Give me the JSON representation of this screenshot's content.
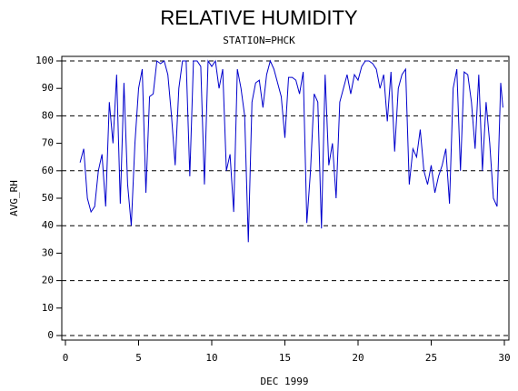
{
  "chart_data": {
    "type": "line",
    "title": "RELATIVE HUMIDITY",
    "subtitle": "STATION=PHCK",
    "x_label": "DEC 1999",
    "y_label": "AVG_RH",
    "xlim": [
      0,
      30
    ],
    "xticks": [
      0,
      5,
      10,
      15,
      20,
      25,
      30
    ],
    "ylim": [
      0,
      100
    ],
    "yticks": [
      0,
      10,
      20,
      30,
      40,
      50,
      60,
      70,
      80,
      90,
      100
    ],
    "grid_values": [
      0,
      20,
      40,
      60,
      80,
      100
    ],
    "series": [
      {
        "color": "#0000cc",
        "x": [
          1.0,
          1.25,
          1.5,
          1.75,
          2.0,
          2.25,
          2.5,
          2.75,
          3.0,
          3.25,
          3.5,
          3.75,
          4.0,
          4.25,
          4.5,
          4.75,
          5.0,
          5.25,
          5.5,
          5.75,
          6.0,
          6.25,
          6.5,
          6.75,
          7.0,
          7.25,
          7.5,
          7.75,
          8.0,
          8.25,
          8.5,
          8.75,
          9.0,
          9.25,
          9.5,
          9.75,
          10.0,
          10.25,
          10.5,
          10.75,
          11.0,
          11.25,
          11.5,
          11.75,
          12.0,
          12.25,
          12.5,
          12.75,
          13.0,
          13.25,
          13.5,
          13.75,
          14.0,
          14.25,
          14.5,
          14.75,
          15.0,
          15.25,
          15.5,
          15.75,
          16.0,
          16.25,
          16.5,
          16.75,
          17.0,
          17.25,
          17.5,
          17.75,
          18.0,
          18.25,
          18.5,
          18.75,
          19.0,
          19.25,
          19.5,
          19.75,
          20.0,
          20.25,
          20.5,
          20.75,
          21.0,
          21.25,
          21.5,
          21.75,
          22.0,
          22.25,
          22.5,
          22.75,
          23.0,
          23.25,
          23.5,
          23.75,
          24.0,
          24.25,
          24.5,
          24.75,
          25.0,
          25.25,
          25.5,
          25.75,
          26.0,
          26.25,
          26.5,
          26.75,
          27.0,
          27.25,
          27.5,
          27.75,
          28.0,
          28.25,
          28.5,
          28.75,
          29.0,
          29.25,
          29.5,
          29.75,
          29.9
        ],
        "values": [
          63,
          68,
          50,
          45,
          47,
          60,
          66,
          47,
          85,
          70,
          95,
          48,
          92,
          55,
          40,
          70,
          90,
          97,
          52,
          87,
          88,
          100,
          99,
          100,
          95,
          80,
          62,
          90,
          100,
          100,
          58,
          100,
          100,
          98,
          55,
          100,
          98,
          100,
          90,
          97,
          60,
          66,
          45,
          97,
          90,
          80,
          34,
          85,
          92,
          93,
          83,
          95,
          100,
          97,
          92,
          87,
          72,
          94,
          94,
          93,
          88,
          96,
          41,
          60,
          88,
          85,
          39,
          95,
          62,
          70,
          50,
          85,
          90,
          95,
          88,
          95,
          93,
          98,
          100,
          100,
          99,
          97,
          90,
          95,
          78,
          96,
          67,
          90,
          95,
          97,
          55,
          68,
          65,
          75,
          60,
          55,
          62,
          52,
          58,
          62,
          68,
          48,
          90,
          97,
          60,
          96,
          95,
          85,
          68,
          95,
          60,
          85,
          70,
          50,
          47,
          92,
          83
        ]
      }
    ]
  }
}
